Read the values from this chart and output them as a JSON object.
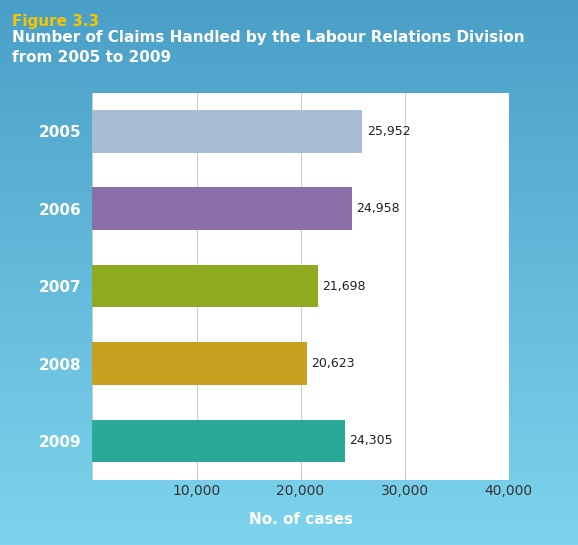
{
  "figure_label": "Figure 3.3",
  "title_line1": "Number of Claims Handled by the Labour Relations Division",
  "title_line2": "from 2005 to 2009",
  "years": [
    "2005",
    "2006",
    "2007",
    "2008",
    "2009"
  ],
  "values": [
    25952,
    24958,
    21698,
    20623,
    24305
  ],
  "labels": [
    "25,952",
    "24,958",
    "21,698",
    "20,623",
    "24,305"
  ],
  "bar_colors": [
    "#a8bdd4",
    "#8b6fa8",
    "#8faa1e",
    "#c8a020",
    "#2aaa96"
  ],
  "xlabel": "No. of cases",
  "xlim": [
    0,
    40000
  ],
  "xticks": [
    0,
    10000,
    20000,
    30000,
    40000
  ],
  "xticklabels": [
    "",
    "10,000",
    "20,000",
    "30,000",
    "40,000"
  ],
  "bg_color_top": "#7dd4ec",
  "bg_color_bottom": "#4a9fc8",
  "plot_bg": "#ffffff",
  "figure_label_color": "#f5c500",
  "title_color": "#ffffff",
  "figure_label_fontsize": 11,
  "title_fontsize": 11,
  "xlabel_fontsize": 11,
  "tick_fontsize": 10,
  "bar_label_fontsize": 9,
  "ytick_fontsize": 11
}
